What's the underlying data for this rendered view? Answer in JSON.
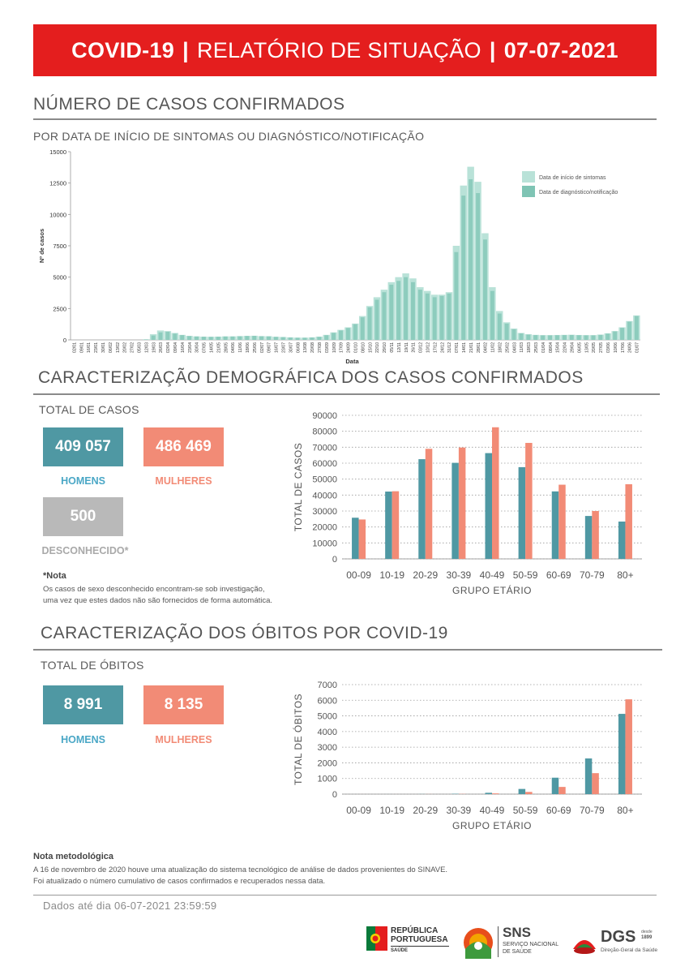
{
  "header": {
    "left": "COVID-19",
    "middle": "RELATÓRIO DE SITUAÇÃO",
    "right": "07-07-2021",
    "separator": "|"
  },
  "cases_section": {
    "title": "NÚMERO DE CASOS CONFIRMADOS",
    "subtitle": "POR DATA DE INÍCIO DE SINTOMAS OU DIAGNÓSTICO/NOTIFICAÇÃO"
  },
  "demo_section": {
    "title": "CARACTERIZAÇÃO DEMOGRÁFICA DOS CASOS CONFIRMADOS",
    "total_label": "TOTAL DE CASOS",
    "men_value": "409 057",
    "men_label": "HOMENS",
    "women_value": "486 469",
    "women_label": "MULHERES",
    "unknown_value": "500",
    "unknown_label": "DESCONHECIDO*",
    "note_title": "*Nota",
    "note_line1": "Os casos de sexo desconhecido encontram-se sob investigação,",
    "note_line2": "uma vez que estes dados não são fornecidos de forma automática."
  },
  "deaths_section": {
    "title": "CARACTERIZAÇÃO DOS ÓBITOS POR COVID-19",
    "total_label": "TOTAL DE ÓBITOS",
    "men_value": "8 991",
    "men_label": "HOMENS",
    "women_value": "8 135",
    "women_label": "MULHERES"
  },
  "method_note": {
    "title": "Nota metodológica",
    "line1": "A 16 de novembro de 2020 houve uma atualização do sistema tecnológico de análise de dados provenientes do SINAVE.",
    "line2": "Foi atualizado o número cumulativo de casos confirmados e recuperados nessa data."
  },
  "footer": {
    "data_date": "Dados até dia 06-07-2021 23:59:59",
    "logo1_line1": "REPÚBLICA",
    "logo1_line2": "PORTUGUESA",
    "logo1_line3": "SAÚDE",
    "logo2_big": "SNS",
    "logo2_l1": "SERVIÇO NACIONAL",
    "logo2_l2": "DE SAÚDE",
    "logo3_big": "DGS",
    "logo3_since": "desde",
    "logo3_year": "1899",
    "logo3_sub": "Direção-Geral da Saúde"
  },
  "colors": {
    "banner": "#e41e1e",
    "teal": "#4f98a3",
    "salmon": "#f28b76",
    "grey": "#b9b9b9",
    "epi_light": "#b9e2d8",
    "epi_dark": "#7fc4b4"
  },
  "chart_data": [
    {
      "type": "bar",
      "id": "epicurve",
      "xlabel": "Data",
      "ylabel": "Nº de casos",
      "ylim": [
        0,
        15000
      ],
      "yticks": [
        "0",
        "2500",
        "5000",
        "7500",
        "10000",
        "12500",
        "15000"
      ],
      "legend": [
        "Data de início de sintomas",
        "Data de diagnóstico/notificação"
      ],
      "legend_position": "top-right",
      "x": [
        "02/01",
        "09/01",
        "16/01",
        "23/01",
        "30/01",
        "06/02",
        "13/02",
        "20/02",
        "27/02",
        "05/03",
        "12/03",
        "19/03",
        "26/03",
        "02/04",
        "09/04",
        "16/04",
        "23/04",
        "30/04",
        "07/05",
        "14/05",
        "21/05",
        "28/05",
        "04/06",
        "11/06",
        "18/06",
        "25/06",
        "02/07",
        "09/07",
        "16/07",
        "23/07",
        "30/07",
        "06/08",
        "13/08",
        "20/08",
        "27/08",
        "03/09",
        "10/09",
        "17/09",
        "24/09",
        "01/10",
        "08/10",
        "15/10",
        "22/10",
        "29/10",
        "05/11",
        "12/11",
        "19/11",
        "26/11",
        "03/12",
        "10/12",
        "17/12",
        "24/12",
        "31/12",
        "07/01",
        "14/01",
        "21/01",
        "28/01",
        "04/02",
        "11/02",
        "18/02",
        "25/02",
        "04/03",
        "11/03",
        "18/03",
        "25/03",
        "01/04",
        "08/04",
        "15/04",
        "22/04",
        "29/04",
        "06/05",
        "13/05",
        "20/05",
        "27/05",
        "03/06",
        "10/06",
        "17/06",
        "24/06",
        "01/07"
      ],
      "series": [
        {
          "name": "Data de início de sintomas",
          "values": [
            0,
            0,
            0,
            0,
            0,
            0,
            0,
            0,
            0,
            0,
            50,
            450,
            750,
            700,
            550,
            400,
            320,
            280,
            260,
            250,
            260,
            280,
            280,
            300,
            320,
            330,
            300,
            290,
            250,
            230,
            200,
            180,
            180,
            200,
            260,
            400,
            600,
            800,
            1000,
            1300,
            1900,
            2700,
            3400,
            4000,
            4600,
            5000,
            5300,
            4900,
            4200,
            3900,
            3600,
            3600,
            3800,
            7500,
            12300,
            13800,
            12600,
            8500,
            4200,
            2300,
            1400,
            900,
            550,
            450,
            400,
            380,
            380,
            390,
            400,
            410,
            390,
            380,
            380,
            420,
            520,
            700,
            1000,
            1500,
            1950
          ]
        },
        {
          "name": "Data de diagnóstico/notificação",
          "values": [
            0,
            0,
            0,
            0,
            0,
            0,
            0,
            0,
            0,
            0,
            30,
            350,
            600,
            650,
            500,
            380,
            300,
            270,
            250,
            240,
            250,
            270,
            270,
            290,
            310,
            320,
            290,
            280,
            240,
            220,
            190,
            170,
            170,
            190,
            240,
            370,
            560,
            750,
            950,
            1250,
            1800,
            2600,
            3200,
            3800,
            4400,
            4700,
            5000,
            4600,
            4000,
            3700,
            3400,
            3500,
            3700,
            7000,
            11500,
            12800,
            11700,
            8000,
            3900,
            2100,
            1300,
            850,
            520,
            420,
            380,
            360,
            360,
            370,
            380,
            390,
            370,
            360,
            360,
            400,
            500,
            680,
            960,
            1450,
            1900
          ]
        }
      ]
    },
    {
      "type": "bar",
      "id": "cases-by-age",
      "categories": [
        "00-09",
        "10-19",
        "20-29",
        "30-39",
        "40-49",
        "50-59",
        "60-69",
        "70-79",
        "80+"
      ],
      "series": [
        {
          "name": "HOMENS",
          "values": [
            25800,
            42200,
            62500,
            60200,
            66300,
            57500,
            42300,
            26900,
            23400
          ]
        },
        {
          "name": "MULHERES",
          "values": [
            24700,
            42400,
            69000,
            69800,
            82500,
            72700,
            46500,
            30000,
            46800
          ]
        }
      ],
      "xlabel": "GRUPO ETÁRIO",
      "ylabel": "TOTAL DE CASOS",
      "ylim": [
        0,
        90000
      ],
      "yticks": [
        "0",
        "10000",
        "20000",
        "30000",
        "40000",
        "50000",
        "60000",
        "70000",
        "80000",
        "90000"
      ]
    },
    {
      "type": "bar",
      "id": "deaths-by-age",
      "categories": [
        "00-09",
        "10-19",
        "20-29",
        "30-39",
        "40-49",
        "50-59",
        "60-69",
        "70-79",
        "80+"
      ],
      "series": [
        {
          "name": "HOMENS",
          "values": [
            1,
            2,
            6,
            20,
            85,
            330,
            1050,
            2280,
            5130
          ]
        },
        {
          "name": "MULHERES",
          "values": [
            1,
            1,
            4,
            12,
            45,
            140,
            460,
            1340,
            6060
          ]
        }
      ],
      "xlabel": "GRUPO ETÁRIO",
      "ylabel": "TOTAL DE ÓBITOS",
      "ylim": [
        0,
        7000
      ],
      "yticks": [
        "0",
        "1000",
        "2000",
        "3000",
        "4000",
        "5000",
        "6000",
        "7000"
      ]
    }
  ]
}
